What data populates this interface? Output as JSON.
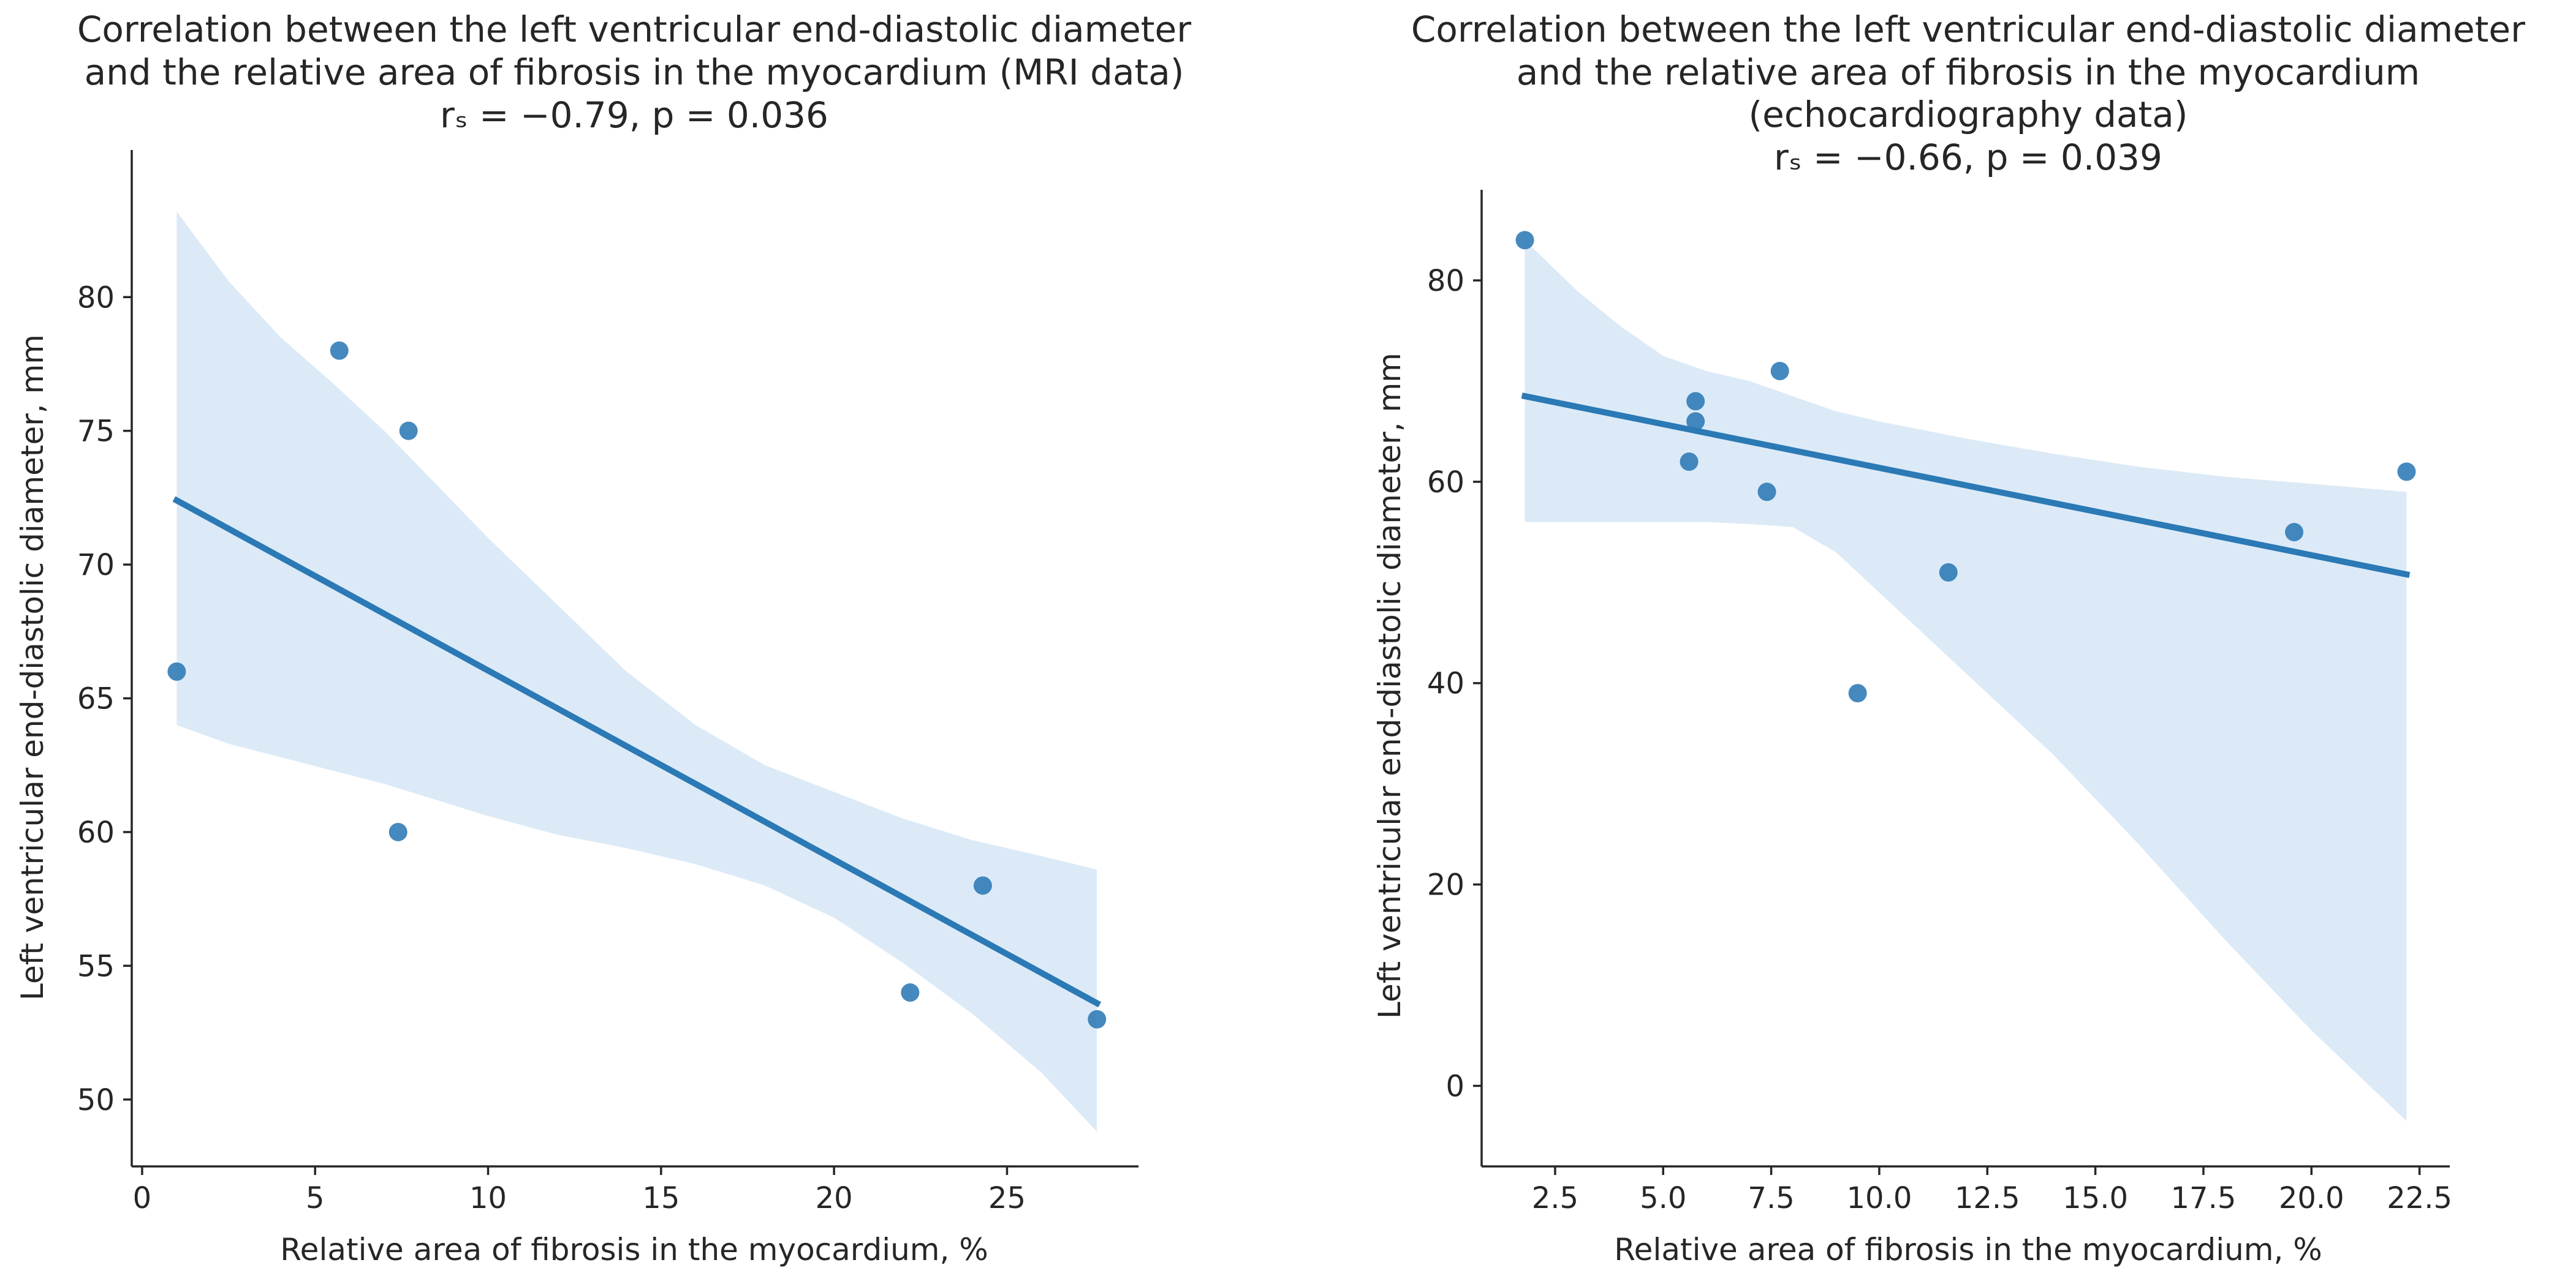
{
  "colors": {
    "series": "#2b79b5",
    "band": "#3f8bd0",
    "text": "#262626"
  },
  "chart_data": [
    {
      "type": "scatter",
      "title_lines": [
        "Correlation between the left ventricular end-diastolic diameter",
        "and the relative area of fibrosis in the myocardium (MRI data)",
        "rₛ = −0.79, p = 0.036"
      ],
      "xlabel": "Relative area of fibrosis in the myocardium, %",
      "ylabel": "Left ventricular end-diastolic diameter, mm",
      "xlim": [
        -0.3,
        28.8
      ],
      "ylim": [
        47.5,
        85.5
      ],
      "xticks": [
        0,
        5,
        10,
        15,
        20,
        25
      ],
      "xtick_labels": [
        "0",
        "5",
        "10",
        "15",
        "20",
        "25"
      ],
      "yticks": [
        50,
        55,
        60,
        65,
        70,
        75,
        80
      ],
      "ytick_labels": [
        "50",
        "55",
        "60",
        "65",
        "70",
        "75",
        "80"
      ],
      "points": [
        {
          "x": 1.0,
          "y": 66
        },
        {
          "x": 5.7,
          "y": 78
        },
        {
          "x": 7.4,
          "y": 60
        },
        {
          "x": 7.7,
          "y": 75
        },
        {
          "x": 22.2,
          "y": 54
        },
        {
          "x": 24.3,
          "y": 58
        },
        {
          "x": 27.6,
          "y": 53
        }
      ],
      "fit_line": {
        "x": [
          1.0,
          27.6
        ],
        "y": [
          72.4,
          53.6
        ]
      },
      "ci_band": {
        "x": [
          1.0,
          2.5,
          4,
          5.5,
          7,
          8.5,
          10,
          12,
          14,
          16,
          18,
          20,
          22,
          24,
          26,
          27.6
        ],
        "upper": [
          83.2,
          80.6,
          78.5,
          76.8,
          75.0,
          73.0,
          71.0,
          68.5,
          66.0,
          64.0,
          62.5,
          61.5,
          60.5,
          59.7,
          59.1,
          58.6
        ],
        "lower": [
          64.0,
          63.3,
          62.8,
          62.3,
          61.8,
          61.2,
          60.6,
          59.9,
          59.4,
          58.8,
          58.0,
          56.8,
          55.1,
          53.2,
          51.0,
          48.8
        ]
      }
    },
    {
      "type": "scatter",
      "title_lines": [
        "Correlation between the left ventricular end-diastolic diameter",
        "and the relative area of fibrosis in the myocardium",
        "(echocardiography data)",
        "rₛ = −0.66, p = 0.039"
      ],
      "xlabel": "Relative area of fibrosis in the myocardium, %",
      "ylabel": "Left ventricular end-diastolic diameter, mm",
      "xlim": [
        0.8,
        23.2
      ],
      "ylim": [
        -8,
        89
      ],
      "xticks": [
        2.5,
        5.0,
        7.5,
        10.0,
        12.5,
        15.0,
        17.5,
        20.0,
        22.5
      ],
      "xtick_labels": [
        "2.5",
        "5.0",
        "7.5",
        "10.0",
        "12.5",
        "15.0",
        "17.5",
        "20.0",
        "22.5"
      ],
      "yticks": [
        0,
        20,
        40,
        60,
        80
      ],
      "ytick_labels": [
        "0",
        "20",
        "40",
        "60",
        "80"
      ],
      "points": [
        {
          "x": 1.8,
          "y": 84
        },
        {
          "x": 5.6,
          "y": 62
        },
        {
          "x": 5.75,
          "y": 66
        },
        {
          "x": 5.75,
          "y": 68
        },
        {
          "x": 7.4,
          "y": 59
        },
        {
          "x": 7.7,
          "y": 71
        },
        {
          "x": 9.5,
          "y": 39
        },
        {
          "x": 11.6,
          "y": 51
        },
        {
          "x": 19.6,
          "y": 55
        },
        {
          "x": 22.2,
          "y": 61
        }
      ],
      "fit_line": {
        "x": [
          1.8,
          22.2
        ],
        "y": [
          68.5,
          50.8
        ]
      },
      "ci_band": {
        "x": [
          1.8,
          3,
          4,
          5,
          6,
          7,
          8,
          9,
          10,
          12,
          14,
          16,
          18,
          20,
          22.2
        ],
        "upper": [
          84.0,
          79.0,
          75.5,
          72.5,
          71.0,
          70.0,
          68.5,
          67.0,
          66.0,
          64.3,
          62.8,
          61.5,
          60.5,
          59.8,
          59.0
        ],
        "lower": [
          56.0,
          56.0,
          56.0,
          56.0,
          56.0,
          55.8,
          55.5,
          53.0,
          49.0,
          41.0,
          33.0,
          24.0,
          14.5,
          5.5,
          -3.5
        ]
      }
    }
  ]
}
